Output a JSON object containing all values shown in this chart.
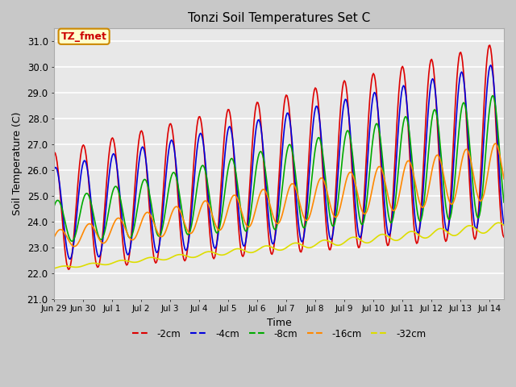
{
  "title": "Tonzi Soil Temperatures Set C",
  "xlabel": "Time",
  "ylabel": "Soil Temperature (C)",
  "ylim": [
    21.0,
    31.5
  ],
  "yticks": [
    21.0,
    22.0,
    23.0,
    24.0,
    25.0,
    26.0,
    27.0,
    28.0,
    29.0,
    30.0,
    31.0
  ],
  "fig_bg_color": "#c8c8c8",
  "plot_bg_color": "#e8e8e8",
  "annotation_label": "TZ_fmet",
  "annotation_color": "#cc0000",
  "annotation_bg": "#ffffcc",
  "annotation_border": "#cc8800",
  "series": [
    {
      "label": "-2cm",
      "color": "#dd0000",
      "lw": 1.2
    },
    {
      "label": "-4cm",
      "color": "#0000dd",
      "lw": 1.2
    },
    {
      "label": "-8cm",
      "color": "#00aa00",
      "lw": 1.2
    },
    {
      "label": "-16cm",
      "color": "#ff8800",
      "lw": 1.2
    },
    {
      "label": "-32cm",
      "color": "#dddd00",
      "lw": 1.2
    }
  ],
  "xtick_labels": [
    "Jun 29",
    "Jun 30",
    "Jul 1",
    "Jul 2",
    "Jul 3",
    "Jul 4",
    "Jul 5",
    "Jul 6",
    "Jul 7",
    "Jul 8",
    "Jul 9",
    "Jul 10",
    "Jul 11",
    "Jul 12",
    "Jul 13",
    "Jul 14"
  ],
  "n_points": 480,
  "xlim": [
    0,
    15.5
  ]
}
